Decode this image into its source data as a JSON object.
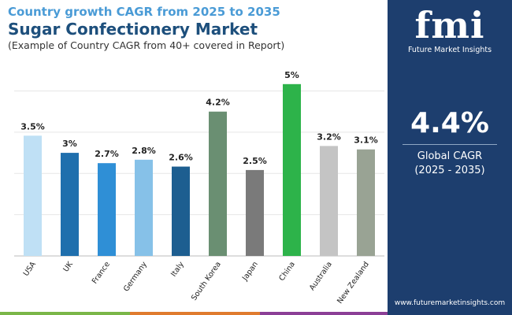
{
  "header": {
    "supertitle": "Country growth CAGR from 2025 to 2035",
    "title": "Sugar Confectionery Market",
    "subtitle": "(Example of Country CAGR from 40+ covered in Report)"
  },
  "sidebar": {
    "logo_text": "fmi",
    "logo_caption": "Future Market Insights",
    "cagr_value": "4.4%",
    "cagr_label": "Global CAGR",
    "cagr_period": "(2025 - 2035)",
    "website": "www.futuremarketinsights.com"
  },
  "colors": {
    "title": "#1d4f7c",
    "supertitle": "#4a9bd6",
    "sidebar_bg": "#1d3e6e",
    "bottom_bar": [
      "#7ab648",
      "#e07b2e",
      "#8b3f96"
    ]
  },
  "chart_data": {
    "type": "bar",
    "categories": [
      "USA",
      "UK",
      "France",
      "Germany",
      "Italy",
      "South Korea",
      "Japan",
      "China",
      "Australia",
      "New Zealand"
    ],
    "values": [
      3.5,
      3.0,
      2.7,
      2.8,
      2.6,
      4.2,
      2.5,
      5.0,
      3.2,
      3.1
    ],
    "data_labels": [
      "3.5%",
      "3%",
      "2.7%",
      "2.8%",
      "2.6%",
      "4.2%",
      "2.5%",
      "5%",
      "3.2%",
      "3.1%"
    ],
    "bar_colors": [
      "#bfe0f5",
      "#1f6fad",
      "#2f8fd6",
      "#86c1e8",
      "#1d5e90",
      "#6a8f72",
      "#7a7a7a",
      "#2db34a",
      "#c4c4c4",
      "#99a394"
    ],
    "ylim": [
      0,
      5.5
    ],
    "grid": true,
    "xlabel": "",
    "ylabel": ""
  }
}
